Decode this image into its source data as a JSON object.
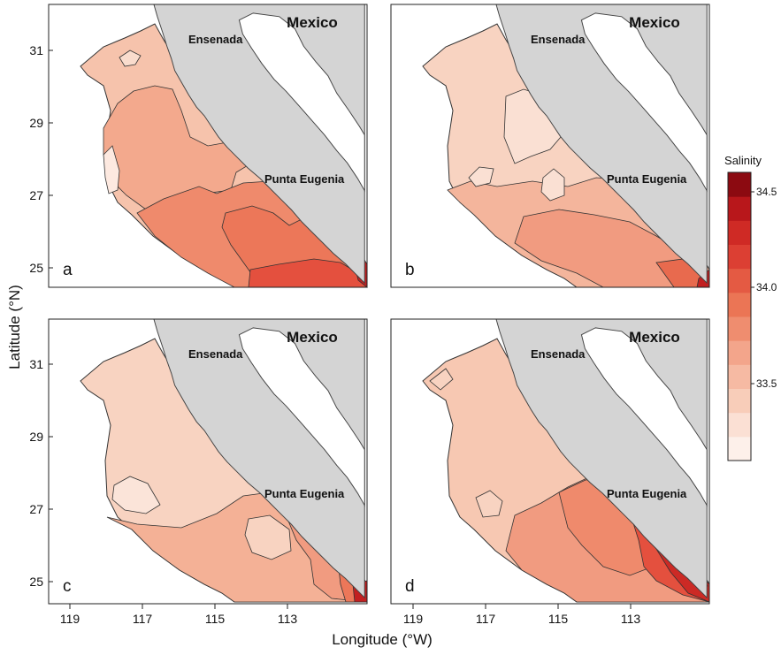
{
  "figure": {
    "y_axis_label": "Latitude (°N)",
    "x_axis_label": "Longitude (°W)",
    "lat_ticks": [
      "31",
      "29",
      "27",
      "25"
    ],
    "lon_ticks": [
      "119",
      "117",
      "115",
      "113"
    ]
  },
  "map_labels": {
    "country": "Mexico",
    "city_north": "Ensenada",
    "cape": "Punta Eugenia"
  },
  "panels": [
    {
      "letter": "a"
    },
    {
      "letter": "b"
    },
    {
      "letter": "c"
    },
    {
      "letter": "d"
    }
  ],
  "colorbar": {
    "title": "Salinity",
    "tick_labels": [
      "34.5",
      "34.0",
      "33.5"
    ],
    "colors": [
      "#fdf0ea",
      "#fbe0d4",
      "#f8cdb9",
      "#f6baa3",
      "#f3a58b",
      "#ef8d6f",
      "#eb7555",
      "#e45a43",
      "#dc3f33",
      "#cf2a25",
      "#b8171b",
      "#8c0a11"
    ]
  },
  "palette": {
    "land": "#d4d4d4",
    "water": "#ffffff",
    "contour_line": "#3a3a3a"
  }
}
